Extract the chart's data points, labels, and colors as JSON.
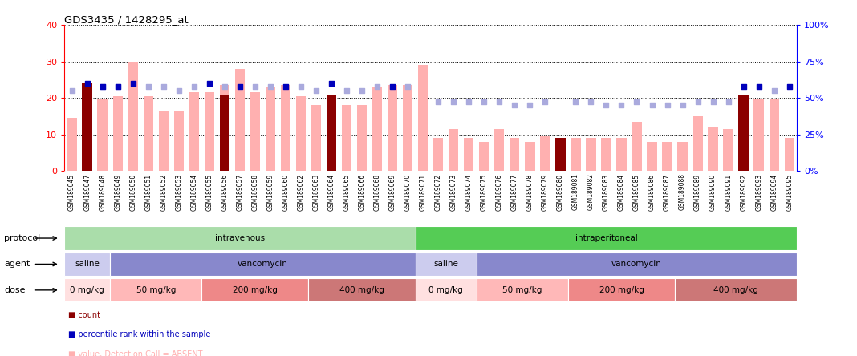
{
  "title": "GDS3435 / 1428295_at",
  "samples": [
    "GSM189045",
    "GSM189047",
    "GSM189048",
    "GSM189049",
    "GSM189050",
    "GSM189051",
    "GSM189052",
    "GSM189053",
    "GSM189054",
    "GSM189055",
    "GSM189056",
    "GSM189057",
    "GSM189058",
    "GSM189059",
    "GSM189060",
    "GSM189062",
    "GSM189063",
    "GSM189064",
    "GSM189065",
    "GSM189066",
    "GSM189068",
    "GSM189069",
    "GSM189070",
    "GSM189071",
    "GSM189072",
    "GSM189073",
    "GSM189074",
    "GSM189075",
    "GSM189076",
    "GSM189077",
    "GSM189078",
    "GSM189079",
    "GSM189080",
    "GSM189081",
    "GSM189082",
    "GSM189083",
    "GSM189084",
    "GSM189085",
    "GSM189086",
    "GSM189087",
    "GSM189088",
    "GSM189089",
    "GSM189090",
    "GSM189091",
    "GSM189092",
    "GSM189093",
    "GSM189094",
    "GSM189095"
  ],
  "pink_bar_values": [
    14.5,
    24.0,
    19.5,
    20.5,
    30.0,
    20.5,
    16.5,
    16.5,
    21.5,
    21.5,
    23.5,
    28.0,
    21.5,
    23.0,
    23.5,
    20.5,
    18.0,
    21.0,
    18.0,
    18.0,
    23.0,
    23.5,
    23.5,
    29.0,
    9.0,
    11.5,
    9.0,
    8.0,
    11.5,
    9.0,
    8.0,
    9.5,
    9.0,
    9.0,
    9.0,
    9.0,
    9.0,
    13.5,
    8.0,
    8.0,
    8.0,
    15.0,
    12.0,
    11.5,
    20.0,
    19.5,
    19.5,
    9.0
  ],
  "dark_bar_values": [
    0,
    24,
    0,
    0,
    0,
    0,
    0,
    0,
    0,
    0,
    21,
    0,
    0,
    0,
    0,
    0,
    0,
    21,
    0,
    0,
    0,
    0,
    0,
    0,
    0,
    0,
    0,
    0,
    0,
    0,
    0,
    0,
    9,
    0,
    0,
    0,
    0,
    0,
    0,
    0,
    0,
    0,
    0,
    0,
    21,
    0,
    0,
    0
  ],
  "blue_sq_values": [
    0,
    60,
    57.5,
    57.5,
    60,
    0,
    0,
    0,
    0,
    60,
    0,
    57.5,
    0,
    0,
    57.5,
    0,
    0,
    60,
    0,
    0,
    0,
    57.5,
    0,
    0,
    0,
    0,
    0,
    0,
    0,
    0,
    0,
    0,
    0,
    0,
    0,
    0,
    0,
    0,
    0,
    0,
    0,
    0,
    0,
    0,
    57.5,
    57.5,
    0,
    57.5
  ],
  "light_blue_sq_values": [
    55,
    0,
    57.5,
    57.5,
    0,
    57.5,
    57.5,
    55,
    57.5,
    0,
    57.5,
    0,
    57.5,
    57.5,
    0,
    57.5,
    55,
    0,
    55,
    55,
    57.5,
    0,
    57.5,
    0,
    47.5,
    47.5,
    47.5,
    47.5,
    47.5,
    45,
    45,
    47.5,
    0,
    47.5,
    47.5,
    45,
    45,
    47.5,
    45,
    45,
    45,
    47.5,
    47.5,
    47.5,
    0,
    0,
    55,
    0
  ],
  "ylim_left": [
    0,
    40
  ],
  "ylim_right": [
    0,
    100
  ],
  "yticks_left": [
    0,
    10,
    20,
    30,
    40
  ],
  "yticks_right": [
    0,
    25,
    50,
    75,
    100
  ],
  "bar_color_pink": "#ffb0b0",
  "bar_color_dark": "#8b0000",
  "blue_sq_color": "#0000bb",
  "light_blue_sq_color": "#aaaadd",
  "protocol_groups": [
    {
      "label": "intravenous",
      "start": 0,
      "end": 23,
      "color": "#aaddaa"
    },
    {
      "label": "intraperitoneal",
      "start": 23,
      "end": 48,
      "color": "#55cc55"
    }
  ],
  "agent_groups": [
    {
      "label": "saline",
      "start": 0,
      "end": 3,
      "color": "#ccccee"
    },
    {
      "label": "vancomycin",
      "start": 3,
      "end": 23,
      "color": "#8888cc"
    },
    {
      "label": "saline",
      "start": 23,
      "end": 27,
      "color": "#ccccee"
    },
    {
      "label": "vancomycin",
      "start": 27,
      "end": 48,
      "color": "#8888cc"
    }
  ],
  "dose_groups": [
    {
      "label": "0 mg/kg",
      "start": 0,
      "end": 3,
      "color": "#ffe0e0"
    },
    {
      "label": "50 mg/kg",
      "start": 3,
      "end": 9,
      "color": "#ffb8b8"
    },
    {
      "label": "200 mg/kg",
      "start": 9,
      "end": 16,
      "color": "#ee8888"
    },
    {
      "label": "400 mg/kg",
      "start": 16,
      "end": 23,
      "color": "#cc7777"
    },
    {
      "label": "0 mg/kg",
      "start": 23,
      "end": 27,
      "color": "#ffe0e0"
    },
    {
      "label": "50 mg/kg",
      "start": 27,
      "end": 33,
      "color": "#ffb8b8"
    },
    {
      "label": "200 mg/kg",
      "start": 33,
      "end": 40,
      "color": "#ee8888"
    },
    {
      "label": "400 mg/kg",
      "start": 40,
      "end": 48,
      "color": "#cc7777"
    }
  ]
}
